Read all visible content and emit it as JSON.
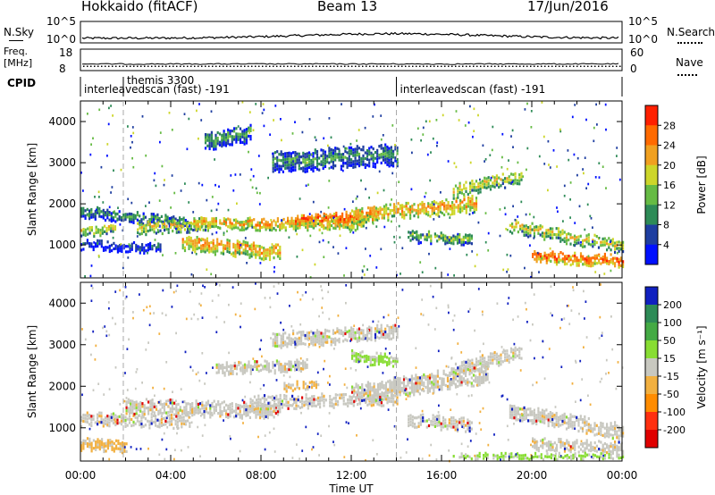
{
  "header": {
    "station": "Hokkaido (fitACF)",
    "beam": "Beam 13",
    "date": "17/Jun/2016"
  },
  "top_panels": {
    "nsky_label": "N.Sky",
    "nsky_ticks": [
      "10^5",
      "10^0"
    ],
    "nsearch_label": "N.Search",
    "nsearch_ticks": [
      "10^5",
      "10^0"
    ],
    "freq_label_1": "Freq.",
    "freq_label_2": "[MHz]",
    "freq_ticks": [
      "18",
      "8"
    ],
    "nave_label": "Nave",
    "nave_ticks": [
      "60",
      "0"
    ],
    "cpid_label": "CPID",
    "cpid_entries": [
      {
        "text": "themis 3300",
        "time_hours": 1.9
      },
      {
        "text": "interleavedscan (fast) -191",
        "time_hours": 0.0
      },
      {
        "text": "interleavedscan (fast) -191",
        "time_hours": 14.0
      }
    ]
  },
  "chart_data": [
    {
      "type": "heatmap",
      "name": "power",
      "ylabel": "Slant Range [km]",
      "yticks": [
        "1000",
        "2000",
        "3000",
        "4000"
      ],
      "ylim": [
        200,
        4500
      ],
      "xlim": [
        0,
        24
      ],
      "colorbar_label": "Power [dB]",
      "colorbar_ticks": [
        "4",
        "8",
        "12",
        "16",
        "20",
        "24",
        "28"
      ],
      "colorbar_colors": [
        "#0010ff",
        "#1e3ea0",
        "#2e8b57",
        "#66bb44",
        "#cdd62a",
        "#f0a020",
        "#ff6a00",
        "#ff2000"
      ],
      "bands": [
        {
          "start": 0.0,
          "end": 1.5,
          "t": [
            0.0,
            1.5
          ],
          "r": [
            1300,
            1350
          ],
          "width": 200,
          "level": 20
        },
        {
          "start": 0.0,
          "end": 4.8,
          "t": [
            0.0,
            4.8
          ],
          "r": [
            1800,
            1500
          ],
          "width": 250,
          "level": 12
        },
        {
          "start": 2.5,
          "end": 5.5,
          "t": [
            2.5,
            5.5
          ],
          "r": [
            1400,
            1500
          ],
          "width": 300,
          "level": 20
        },
        {
          "start": 4.5,
          "end": 8.8,
          "t": [
            4.5,
            8.8
          ],
          "r": [
            1050,
            800
          ],
          "width": 350,
          "level": 24
        },
        {
          "start": 5.0,
          "end": 12.5,
          "t": [
            5.0,
            12.5
          ],
          "r": [
            1500,
            1500
          ],
          "width": 250,
          "level": 24
        },
        {
          "start": 9.5,
          "end": 13.0,
          "t": [
            9.5,
            13.0
          ],
          "r": [
            1550,
            1700
          ],
          "width": 250,
          "level": 28
        },
        {
          "start": 12.0,
          "end": 17.5,
          "t": [
            12.0,
            17.5
          ],
          "r": [
            1700,
            2000
          ],
          "width": 350,
          "level": 24
        },
        {
          "start": 16.5,
          "end": 19.5,
          "t": [
            16.5,
            19.5
          ],
          "r": [
            2300,
            2650
          ],
          "width": 300,
          "level": 20
        },
        {
          "start": 14.5,
          "end": 17.3,
          "t": [
            14.5,
            17.3
          ],
          "r": [
            1200,
            1100
          ],
          "width": 250,
          "level": 16
        },
        {
          "start": 19.0,
          "end": 24.0,
          "t": [
            19.0,
            24.0
          ],
          "r": [
            1450,
            950
          ],
          "width": 300,
          "level": 20
        },
        {
          "start": 20.0,
          "end": 24.0,
          "t": [
            20.0,
            24.0
          ],
          "r": [
            700,
            600
          ],
          "width": 250,
          "level": 28
        },
        {
          "start": 8.5,
          "end": 14.0,
          "t": [
            8.5,
            14.0
          ],
          "r": [
            3000,
            3200
          ],
          "width": 500,
          "level": 12
        },
        {
          "start": 5.5,
          "end": 7.5,
          "t": [
            5.5,
            7.5
          ],
          "r": [
            3500,
            3700
          ],
          "width": 400,
          "level": 12
        },
        {
          "start": 0.0,
          "end": 3.5,
          "t": [
            0.0,
            3.5
          ],
          "r": [
            1000,
            900
          ],
          "width": 200,
          "level": 8
        }
      ]
    },
    {
      "type": "heatmap",
      "name": "velocity",
      "ylabel": "Slant Range [km]",
      "yticks": [
        "1000",
        "2000",
        "3000",
        "4000"
      ],
      "ylim": [
        200,
        4500
      ],
      "xlim": [
        0,
        24
      ],
      "xticks": [
        "00:00",
        "04:00",
        "08:00",
        "12:00",
        "16:00",
        "20:00",
        "00:00"
      ],
      "xlabel": "Time UT",
      "colorbar_label": "Velocity [m s⁻¹]",
      "colorbar_ticks": [
        "200",
        "100",
        "50",
        "15",
        "-15",
        "-50",
        "-100",
        "-200"
      ],
      "colorbar_colors": [
        "#1020c0",
        "#2e8b57",
        "#44aa44",
        "#88dd33",
        "#c8c8c0",
        "#f2b040",
        "#ff8c00",
        "#ff3010",
        "#e00000"
      ],
      "bands": [
        {
          "start": 0.0,
          "end": 4.8,
          "t": [
            0.0,
            4.8
          ],
          "r": [
            1200,
            1150
          ],
          "width": 300,
          "level": 0
        },
        {
          "start": 2.0,
          "end": 8.8,
          "t": [
            2.0,
            8.8
          ],
          "r": [
            1500,
            1400
          ],
          "width": 350,
          "level": 0
        },
        {
          "start": 7.5,
          "end": 14.0,
          "t": [
            7.5,
            14.0
          ],
          "r": [
            1600,
            1700
          ],
          "width": 300,
          "level": 0
        },
        {
          "start": 12.0,
          "end": 18.0,
          "t": [
            12.0,
            18.0
          ],
          "r": [
            1800,
            2300
          ],
          "width": 450,
          "level": 0
        },
        {
          "start": 16.5,
          "end": 19.5,
          "t": [
            16.5,
            19.5
          ],
          "r": [
            2400,
            2800
          ],
          "width": 300,
          "level": 0
        },
        {
          "start": 14.5,
          "end": 17.3,
          "t": [
            14.5,
            17.3
          ],
          "r": [
            1200,
            1050
          ],
          "width": 300,
          "level": 0
        },
        {
          "start": 19.0,
          "end": 24.0,
          "t": [
            19.0,
            24.0
          ],
          "r": [
            1400,
            900
          ],
          "width": 350,
          "level": 0
        },
        {
          "start": 20.0,
          "end": 24.0,
          "t": [
            20.0,
            24.0
          ],
          "r": [
            600,
            500
          ],
          "width": 250,
          "level": 0
        },
        {
          "start": 8.5,
          "end": 14.0,
          "t": [
            8.5,
            14.0
          ],
          "r": [
            3100,
            3300
          ],
          "width": 350,
          "level": 0
        },
        {
          "start": 6.0,
          "end": 10.0,
          "t": [
            6.0,
            10.0
          ],
          "r": [
            2400,
            2500
          ],
          "width": 250,
          "level": 0
        },
        {
          "start": 9.0,
          "end": 10.5,
          "t": [
            9.0,
            10.5
          ],
          "r": [
            2000,
            2000
          ],
          "width": 200,
          "level": -15
        },
        {
          "start": 12.0,
          "end": 14.0,
          "t": [
            12.0,
            14.0
          ],
          "r": [
            2700,
            2600
          ],
          "width": 250,
          "level": 15
        },
        {
          "start": 16.5,
          "end": 24.0,
          "t": [
            16.5,
            24.0
          ],
          "r": [
            300,
            300
          ],
          "width": 150,
          "level": 15
        },
        {
          "start": 0.0,
          "end": 2.0,
          "t": [
            0.0,
            2.0
          ],
          "r": [
            600,
            550
          ],
          "width": 250,
          "level": -15
        }
      ]
    }
  ]
}
